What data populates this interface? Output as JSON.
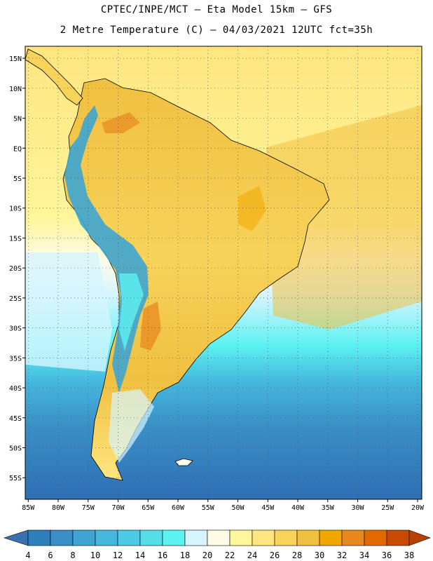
{
  "title_line1": "CPTEC/INPE/MCT –  Eta Model 15km – GFS",
  "title_line2": "2 Metre Temperature (C) – 04/03/2021 12UTC fct=35h",
  "lat_labels": [
    "15N",
    "10N",
    "5N",
    "EQ",
    "5S",
    "10S",
    "15S",
    "20S",
    "25S",
    "30S",
    "35S",
    "40S",
    "45S",
    "50S",
    "55S"
  ],
  "lat_values": [
    15,
    10,
    5,
    0,
    -5,
    -10,
    -15,
    -20,
    -25,
    -30,
    -35,
    -40,
    -45,
    -50,
    -55
  ],
  "lon_labels": [
    "85W",
    "80W",
    "75W",
    "70W",
    "65W",
    "60W",
    "55W",
    "50W",
    "45W",
    "40W",
    "35W",
    "30W",
    "25W",
    "20W"
  ],
  "lon_values": [
    -85,
    -80,
    -75,
    -70,
    -65,
    -60,
    -55,
    -50,
    -45,
    -40,
    -35,
    -30,
    -25,
    -20
  ],
  "colorbar": {
    "labels": [
      "4",
      "6",
      "8",
      "10",
      "12",
      "14",
      "16",
      "18",
      "20",
      "22",
      "24",
      "26",
      "28",
      "30",
      "32",
      "34",
      "36",
      "38"
    ],
    "colors": [
      "#3a6fb0",
      "#2f7fbd",
      "#3a8fc6",
      "#3ea5d2",
      "#45b8de",
      "#4ccbe6",
      "#55dde8",
      "#5cf2f2",
      "#d6f5ff",
      "#fffbe6",
      "#fff59a",
      "#ffe680",
      "#f7d35a",
      "#f0c040",
      "#f0a800",
      "#e88820",
      "#e06a00",
      "#c84a00",
      "#b84000"
    ],
    "under_color": "#3a6fb0",
    "over_color": "#b84000"
  }
}
